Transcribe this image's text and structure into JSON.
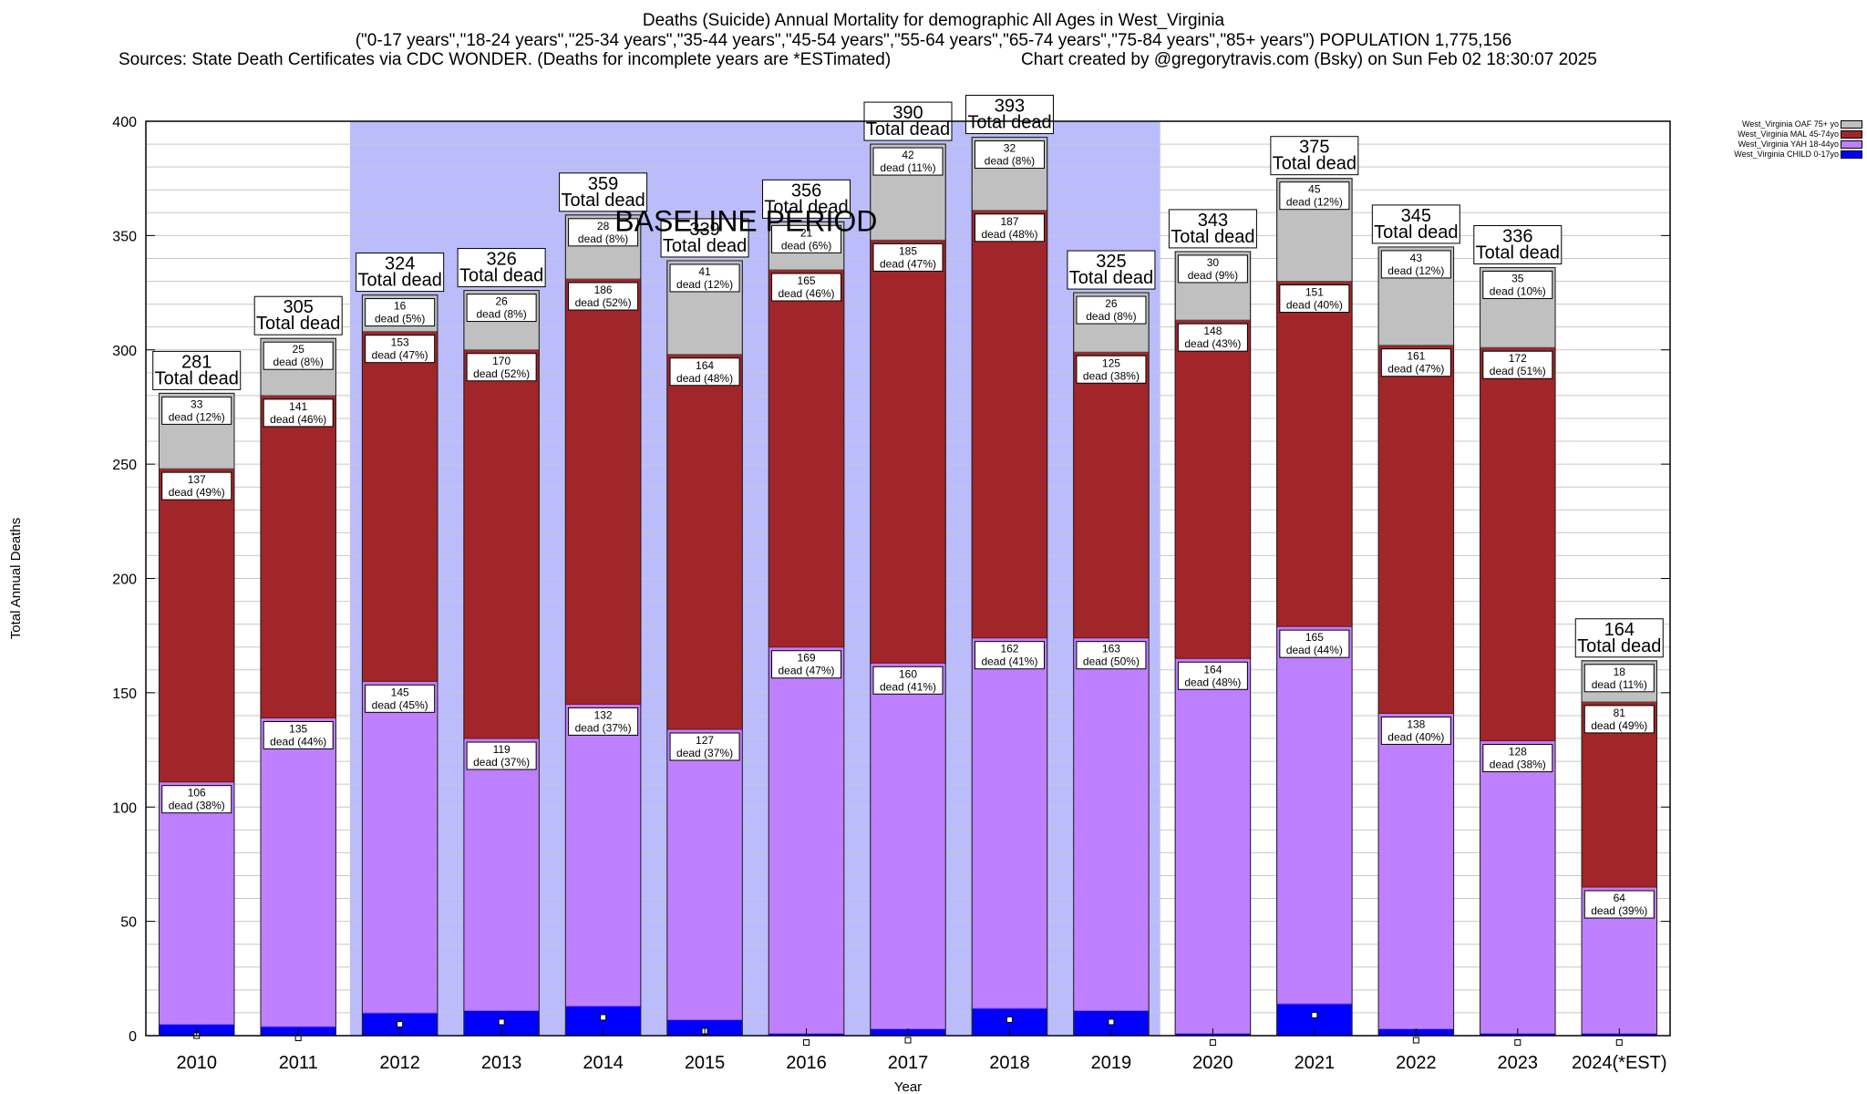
{
  "header": {
    "title": "Deaths (Suicide) Annual Mortality for demographic All Ages in West_Virginia",
    "subtitle": "(\"0-17 years\",\"18-24 years\",\"25-34 years\",\"35-44 years\",\"45-54 years\",\"55-64 years\",\"65-74 years\",\"75-84 years\",\"85+ years\") POPULATION 1,775,156",
    "sources": "Sources: State Death Certificates via CDC WONDER. (Deaths for incomplete years are *ESTimated)",
    "credit": "Chart created by @gregorytravis.com (Bsky) on Sun Feb 02 18:30:07 2025"
  },
  "chart_data": {
    "type": "bar",
    "stacked": true,
    "xlabel": "Year",
    "ylabel": "Total Annual Deaths",
    "ylim": [
      0,
      400
    ],
    "yticks": [
      0,
      50,
      100,
      150,
      200,
      250,
      300,
      350,
      400
    ],
    "grid": true,
    "legend_position": "top-right",
    "baseline_label": "BASELINE PERIOD",
    "baseline_range": [
      "2012",
      "2019"
    ],
    "total_label_suffix": "Total dead",
    "segment_label_word": "dead",
    "categories": [
      "2010",
      "2011",
      "2012",
      "2013",
      "2014",
      "2015",
      "2016",
      "2017",
      "2018",
      "2019",
      "2020",
      "2021",
      "2022",
      "2023",
      "2024(*EST)"
    ],
    "totals": [
      281,
      305,
      324,
      326,
      359,
      339,
      356,
      390,
      393,
      325,
      343,
      375,
      345,
      336,
      164
    ],
    "series": [
      {
        "name": "West_Virginia CHILD 0-17yo",
        "color": "#0000ff",
        "values": [
          5,
          4,
          10,
          11,
          13,
          7,
          1,
          3,
          12,
          11,
          1,
          14,
          3,
          1,
          1
        ],
        "marker_values": [
          0,
          -1,
          5,
          6,
          8,
          2,
          -3,
          -2,
          7,
          6,
          -3,
          9,
          -2,
          -3,
          -3
        ]
      },
      {
        "name": "West_Virginia YAH 18-44yo",
        "color": "#bf80ff",
        "values": [
          106,
          135,
          145,
          119,
          132,
          127,
          169,
          160,
          162,
          163,
          164,
          165,
          138,
          128,
          64
        ],
        "pct": [
          "38%",
          "44%",
          "45%",
          "37%",
          "37%",
          "37%",
          "47%",
          "41%",
          "41%",
          "50%",
          "48%",
          "44%",
          "40%",
          "38%",
          "39%"
        ]
      },
      {
        "name": "West_Virginia MAL 45-74yo",
        "color": "#a0262a",
        "values": [
          137,
          141,
          153,
          170,
          186,
          164,
          165,
          185,
          187,
          125,
          148,
          151,
          161,
          172,
          81
        ],
        "pct": [
          "49%",
          "46%",
          "47%",
          "52%",
          "52%",
          "48%",
          "46%",
          "47%",
          "48%",
          "38%",
          "43%",
          "40%",
          "47%",
          "51%",
          "49%"
        ]
      },
      {
        "name": "West_Virginia OAF 75+ yo",
        "color": "#c0c0c0",
        "values": [
          33,
          25,
          16,
          26,
          28,
          41,
          21,
          42,
          32,
          26,
          30,
          45,
          43,
          35,
          18
        ],
        "pct": [
          "12%",
          "8%",
          "5%",
          "8%",
          "8%",
          "12%",
          "6%",
          "11%",
          "8%",
          "8%",
          "9%",
          "12%",
          "12%",
          "10%",
          "11%"
        ]
      }
    ]
  }
}
